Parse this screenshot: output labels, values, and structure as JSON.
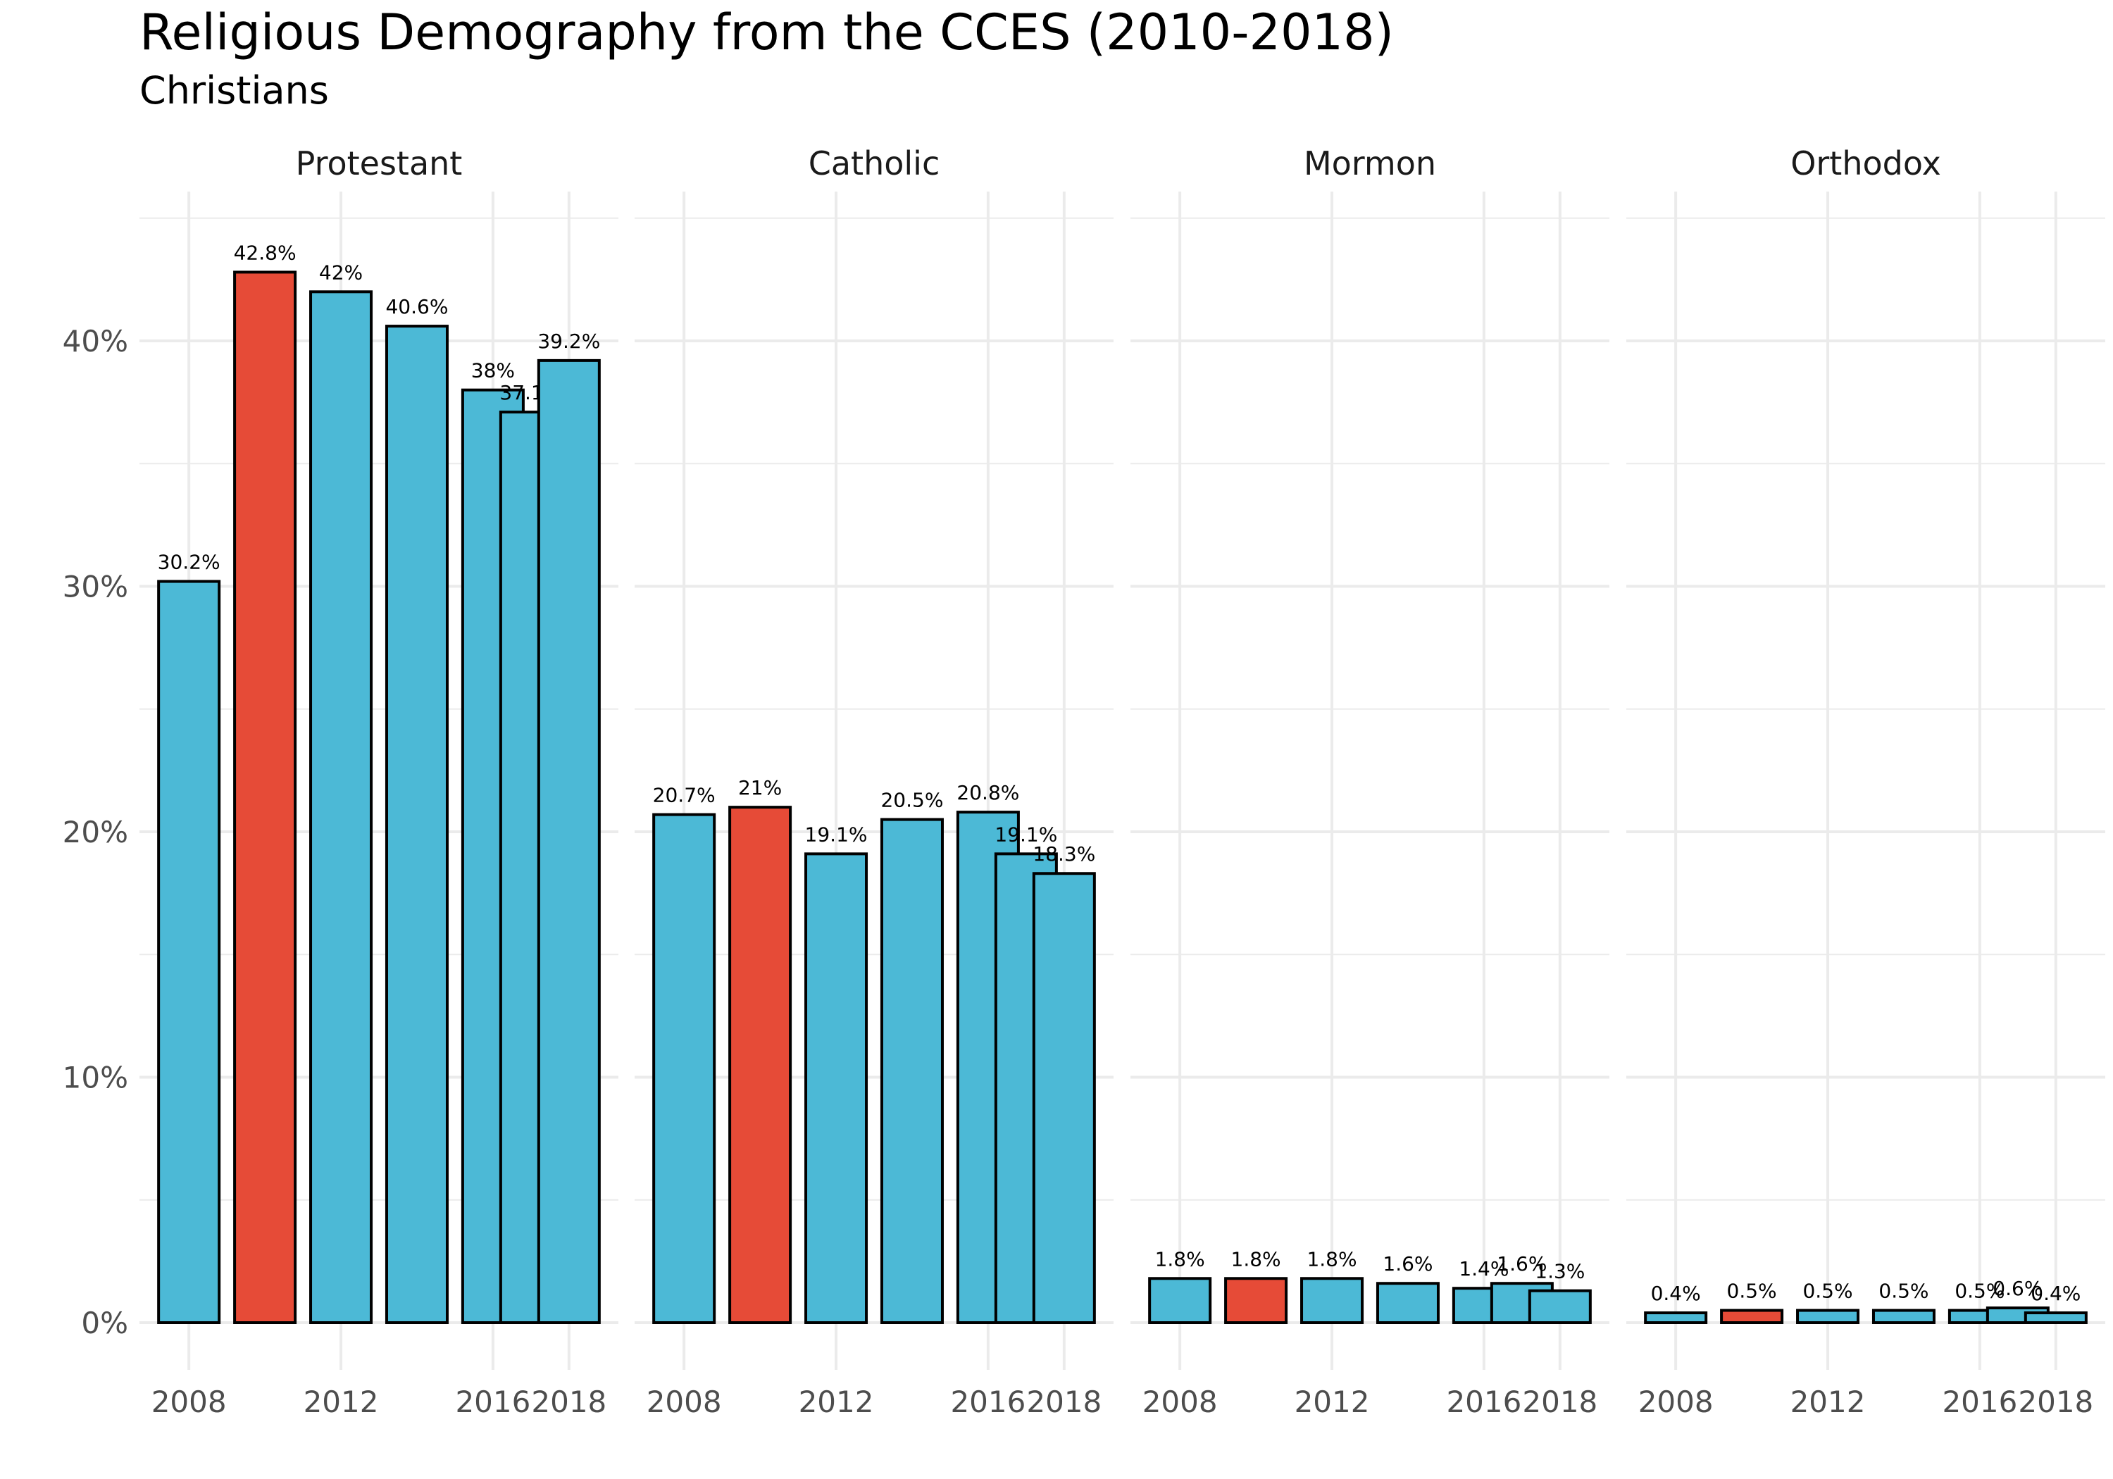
{
  "chart_data": {
    "type": "bar",
    "title": "Religious Demography from the CCES (2010-2018)",
    "subtitle": "Christians",
    "xlabel": "",
    "ylabel": "",
    "x": [
      2008,
      2010,
      2012,
      2014,
      2016,
      2017,
      2018
    ],
    "x_ticks": [
      "2008",
      "2012",
      "2016",
      "2018"
    ],
    "y_ticks": [
      "0%",
      "10%",
      "20%",
      "30%",
      "40%"
    ],
    "ylim": [
      0,
      45
    ],
    "grid": true,
    "colors": {
      "default": "#4cb9d6",
      "highlight": "#e64b37",
      "border": "#000000"
    },
    "highlight_index": 1,
    "panels": [
      {
        "name": "Protestant",
        "values": [
          30.2,
          42.8,
          42,
          40.6,
          38,
          37.1,
          39.2
        ],
        "labels": [
          "30.2%",
          "42.8%",
          "42%",
          "40.6%",
          "38%",
          "37.1%",
          "39.2%"
        ]
      },
      {
        "name": "Catholic",
        "values": [
          20.7,
          21,
          19.1,
          20.5,
          20.8,
          19.1,
          18.3
        ],
        "labels": [
          "20.7%",
          "21%",
          "19.1%",
          "20.5%",
          "20.8%",
          "19.1%",
          "18.3%"
        ]
      },
      {
        "name": "Mormon",
        "values": [
          1.8,
          1.8,
          1.8,
          1.6,
          1.4,
          1.6,
          1.3
        ],
        "labels": [
          "1.8%",
          "1.8%",
          "1.8%",
          "1.6%",
          "1.4%",
          "1.6%",
          "1.3%"
        ]
      },
      {
        "name": "Orthodox",
        "values": [
          0.4,
          0.5,
          0.5,
          0.5,
          0.5,
          0.6,
          0.4
        ],
        "labels": [
          "0.4%",
          "0.5%",
          "0.5%",
          "0.5%",
          "0.5%",
          "0.6%",
          "0.4%"
        ]
      }
    ]
  }
}
